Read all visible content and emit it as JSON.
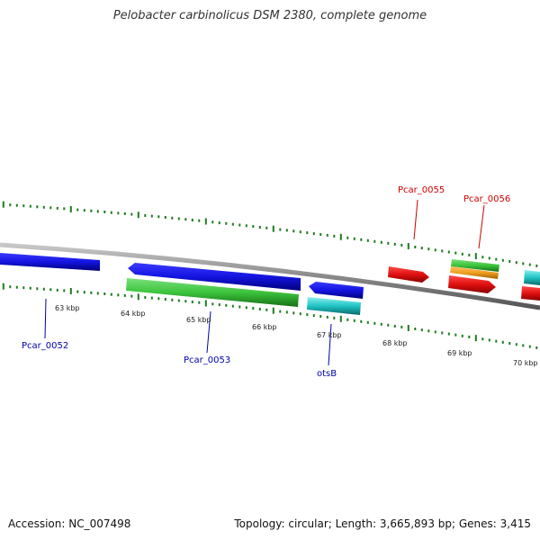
{
  "header": {
    "title": "Pelobacter carbinolicus DSM 2380, complete genome"
  },
  "footer": {
    "accession": "Accession: NC_007498",
    "summary": "Topology: circular; Length: 3,665,893 bp; Genes: 3,415"
  },
  "map": {
    "colors": {
      "backbone": "#8a8a8a",
      "ticks": "#1e7b1e",
      "forward_label": "#cc0000",
      "reverse_label": "#0000aa"
    },
    "scale_labels": [
      "63 kbp",
      "64 kbp",
      "65 kbp",
      "66 kbp",
      "67 kbp",
      "68 kbp",
      "69 kbp",
      "70 kbp"
    ],
    "gene_labels": [
      {
        "text": "Pcar_0052",
        "strand": "reverse"
      },
      {
        "text": "Pcar_0053",
        "strand": "reverse"
      },
      {
        "text": "otsB",
        "strand": "reverse"
      },
      {
        "text": "Pcar_0055",
        "strand": "forward"
      },
      {
        "text": "Pcar_0056",
        "strand": "forward"
      }
    ],
    "features": [
      {
        "name": "Pcar_0052",
        "strand": "reverse",
        "color": "#1a1ad6"
      },
      {
        "name": "Pcar_0053",
        "strand": "reverse",
        "color": "#1a1ad6"
      },
      {
        "name": "Pcar_0053-rna",
        "strand": "reverse",
        "color": "#3cc43c"
      },
      {
        "name": "otsB",
        "strand": "reverse",
        "color": "#1a1ad6"
      },
      {
        "name": "otsB-rna",
        "strand": "reverse",
        "color": "#1fc4c4"
      },
      {
        "name": "Pcar_0055",
        "strand": "forward",
        "color": "#e01010"
      },
      {
        "name": "Pcar_0056",
        "strand": "forward",
        "color": "#e01010"
      },
      {
        "name": "Pcar_0056-rna",
        "strand": "forward",
        "color": "#3cc43c"
      },
      {
        "name": "Pcar_0056-cds",
        "strand": "forward",
        "color": "#f0a020"
      },
      {
        "name": "next-forward",
        "strand": "forward",
        "color": "#e01010"
      },
      {
        "name": "next-forward-rna",
        "strand": "forward",
        "color": "#1fe0e0"
      }
    ]
  }
}
